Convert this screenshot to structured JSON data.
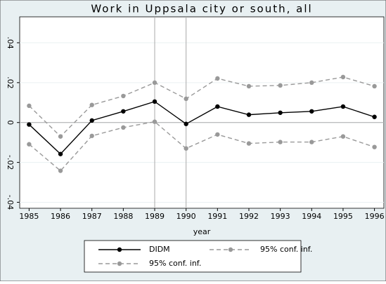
{
  "chart_data": {
    "type": "line",
    "title": "Work in Uppsala city or south, all",
    "x_label": "year",
    "x": [
      1985,
      1986,
      1987,
      1988,
      1989,
      1990,
      1991,
      1992,
      1993,
      1994,
      1995,
      1996
    ],
    "series": [
      {
        "name": "DIDM",
        "color": "#000000",
        "dash": false,
        "values": [
          -0.001,
          -0.0158,
          0.001,
          0.0056,
          0.0105,
          -0.0007,
          0.008,
          0.0039,
          0.0049,
          0.0056,
          0.008,
          0.0028
        ]
      },
      {
        "name": "95% conf. inf.",
        "color": "#999999",
        "dash": true,
        "values": [
          0.0084,
          -0.007,
          0.0088,
          0.0133,
          0.02,
          0.0119,
          0.0221,
          0.0182,
          0.0186,
          0.02,
          0.0228,
          0.0182
        ]
      },
      {
        "name": "95% conf. inf.",
        "color": "#999999",
        "dash": true,
        "values": [
          -0.0109,
          -0.0242,
          -0.0067,
          -0.0025,
          0.0004,
          -0.013,
          -0.006,
          -0.0105,
          -0.0098,
          -0.0098,
          -0.007,
          -0.0123
        ]
      }
    ],
    "xlim": [
      1984.7,
      1996.3
    ],
    "ylim": [
      -0.043,
      0.053
    ],
    "xticks": [
      1985,
      1986,
      1987,
      1988,
      1989,
      1990,
      1991,
      1992,
      1993,
      1994,
      1995,
      1996
    ],
    "yticks": [
      {
        "value": -0.04,
        "label": "-.04"
      },
      {
        "value": -0.02,
        "label": "-.02"
      },
      0,
      {
        "value": 0.02,
        "label": ".02"
      },
      {
        "value": 0.04,
        "label": ".04"
      }
    ],
    "xlines": [
      1989,
      1990
    ],
    "ylines": [
      0
    ],
    "grid": true,
    "legend": "bottom"
  }
}
